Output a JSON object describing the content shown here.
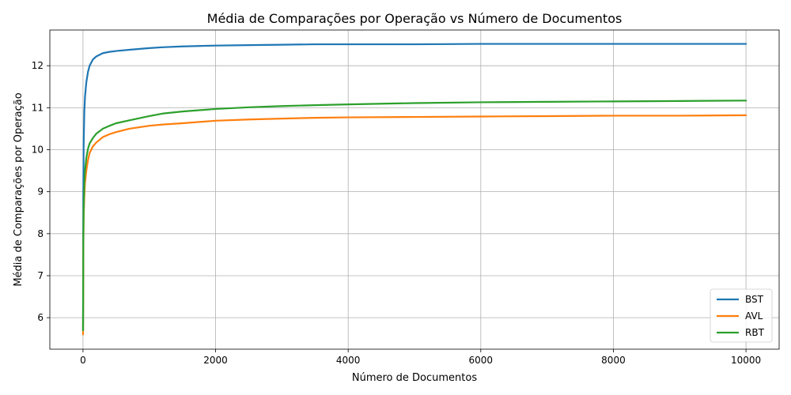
{
  "chart_data": {
    "type": "line",
    "title": "Média de Comparações por Operação vs Número de Documentos",
    "xlabel": "Número de Documentos",
    "ylabel": "Média de Comparações por Operação",
    "xlim": [
      -500,
      10500
    ],
    "ylim": [
      5.25,
      12.85
    ],
    "xticks": [
      0,
      2000,
      4000,
      6000,
      8000,
      10000
    ],
    "yticks": [
      6,
      7,
      8,
      9,
      10,
      11,
      12
    ],
    "grid": true,
    "legend_position": "bottom-right",
    "series": [
      {
        "name": "BST",
        "color": "#1f77b4",
        "x": [
          1,
          5,
          10,
          20,
          30,
          50,
          75,
          100,
          150,
          200,
          300,
          400,
          500,
          700,
          1000,
          1200,
          1500,
          2000,
          2500,
          3000,
          3500,
          4000,
          5000,
          6000,
          7000,
          8000,
          9000,
          10000
        ],
        "y": [
          5.7,
          9.0,
          10.1,
          10.9,
          11.25,
          11.6,
          11.85,
          12.0,
          12.15,
          12.22,
          12.3,
          12.33,
          12.35,
          12.38,
          12.42,
          12.44,
          12.46,
          12.48,
          12.49,
          12.5,
          12.51,
          12.51,
          12.51,
          12.52,
          12.52,
          12.52,
          12.52,
          12.52
        ]
      },
      {
        "name": "AVL",
        "color": "#ff7f0e",
        "x": [
          1,
          5,
          10,
          20,
          30,
          50,
          75,
          100,
          150,
          200,
          300,
          400,
          500,
          700,
          1000,
          1200,
          1500,
          2000,
          2500,
          3000,
          3500,
          4000,
          5000,
          6000,
          7000,
          8000,
          9000,
          10000
        ],
        "y": [
          5.6,
          7.6,
          8.4,
          8.9,
          9.2,
          9.5,
          9.75,
          9.92,
          10.08,
          10.17,
          10.3,
          10.37,
          10.42,
          10.5,
          10.57,
          10.6,
          10.63,
          10.69,
          10.72,
          10.74,
          10.76,
          10.77,
          10.78,
          10.79,
          10.8,
          10.81,
          10.81,
          10.82
        ]
      },
      {
        "name": "RBT",
        "color": "#2ca02c",
        "x": [
          1,
          5,
          10,
          20,
          30,
          50,
          75,
          100,
          150,
          200,
          300,
          400,
          500,
          700,
          1000,
          1200,
          1500,
          2000,
          2500,
          3000,
          3500,
          4000,
          5000,
          6000,
          7000,
          8000,
          9000,
          10000
        ],
        "y": [
          5.7,
          7.8,
          8.6,
          9.2,
          9.5,
          9.8,
          10.02,
          10.15,
          10.28,
          10.38,
          10.5,
          10.57,
          10.63,
          10.7,
          10.8,
          10.86,
          10.91,
          10.97,
          11.01,
          11.04,
          11.06,
          11.08,
          11.11,
          11.13,
          11.14,
          11.15,
          11.16,
          11.17
        ]
      }
    ]
  }
}
